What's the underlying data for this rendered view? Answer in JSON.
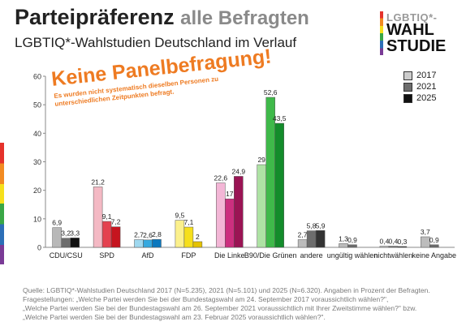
{
  "header": {
    "title": "Parteipräferenz",
    "title_suffix": "alle Befragten",
    "subtitle": "LGBTIQ*-Wahlstudien Deutschland im Verlauf"
  },
  "logo": {
    "line1": "LGBTIQ*-",
    "line2": "WAHL",
    "line3": "STUDIE"
  },
  "notice": {
    "headline": "Keine Panelbefragung!",
    "line1": "Es wurden nicht systematisch dieselben Personen zu",
    "line2": "unterschiedlichen Zeitpunkten befragt."
  },
  "footer": {
    "line1": "Quelle: LGBTIQ*-Wahlstudien Deutschland 2017 (N=5.235), 2021 (N=5.101) und 2025 (N=6.320). Angaben in Prozent der Befragten.",
    "line2": "Fragestellungen: „Welche Partei werden Sie bei der Bundestagswahl am 24. September 2017 voraussichtlich wählen?\",",
    "line3": "„Welche Partei werden Sie bei der Bundestagswahl am 26. September 2021 voraussichtlich mit Ihrer Zweitstimme wählen?\" bzw.",
    "line4": "„Welche Partei werden Sie bei der Bundestagswahl am 23. Februar 2025 voraussichtlich wählen?\"."
  },
  "chart_data": {
    "type": "bar",
    "title": "Parteipräferenz alle Befragten",
    "ylim": [
      0,
      60
    ],
    "yticks": [
      0,
      10,
      20,
      30,
      40,
      50,
      60
    ],
    "grid": false,
    "legend_position": "top-right",
    "categories": [
      "CDU/CSU",
      "SPD",
      "AfD",
      "FDP",
      "Die Linke",
      "B90/Die Grünen",
      "andere",
      "ungültig wählen",
      "nichtwählen",
      "keine Angabe"
    ],
    "series": [
      {
        "name": "2017",
        "values": [
          6.9,
          21.2,
          2.7,
          9.5,
          22.6,
          29,
          2.7,
          1.3,
          0.4,
          3.7
        ]
      },
      {
        "name": "2021",
        "values": [
          3.2,
          9.1,
          2.6,
          7.1,
          17,
          52.6,
          5.8,
          0.9,
          0.4,
          0.9
        ]
      },
      {
        "name": "2025",
        "values": [
          3.3,
          7.2,
          2.8,
          2,
          24.9,
          43.5,
          5.9,
          null,
          0.3,
          null
        ]
      }
    ],
    "value_labels": [
      [
        "6,9",
        "21,2",
        "2,7",
        "9,5",
        "22,6",
        "29",
        "2,7",
        "1,3",
        "0,4",
        "3,7"
      ],
      [
        "3,2",
        "9,1",
        "2,6",
        "7,1",
        "17",
        "52,6",
        "5,8",
        "0,9",
        "0,4",
        "0,9"
      ],
      [
        "3,3",
        "7,2",
        "2,8",
        "2",
        "24,9",
        "43,5",
        "5,9",
        "",
        "0,3",
        ""
      ]
    ],
    "colors": [
      [
        "#b8b8b8",
        "#f4b9c4",
        "#9fd8ef",
        "#fbf08c",
        "#f3b6d6",
        "#aee2a4",
        "#bcbcbc",
        "#bcbcbc",
        "#bcbcbc",
        "#bcbcbc"
      ],
      [
        "#6d6d6d",
        "#e4414f",
        "#36a9df",
        "#f6df1c",
        "#cc2f7f",
        "#3fb94a",
        "#6d6d6d",
        "#6d6d6d",
        "#6d6d6d",
        "#6d6d6d"
      ],
      [
        "#111111",
        "#c6141f",
        "#0c78be",
        "#e4c203",
        "#9a1454",
        "#138c2b",
        "#333333",
        "#333333",
        "#333333",
        "#333333"
      ]
    ],
    "legend_colors": [
      "#cccccc",
      "#6d6d6d",
      "#111111"
    ]
  }
}
